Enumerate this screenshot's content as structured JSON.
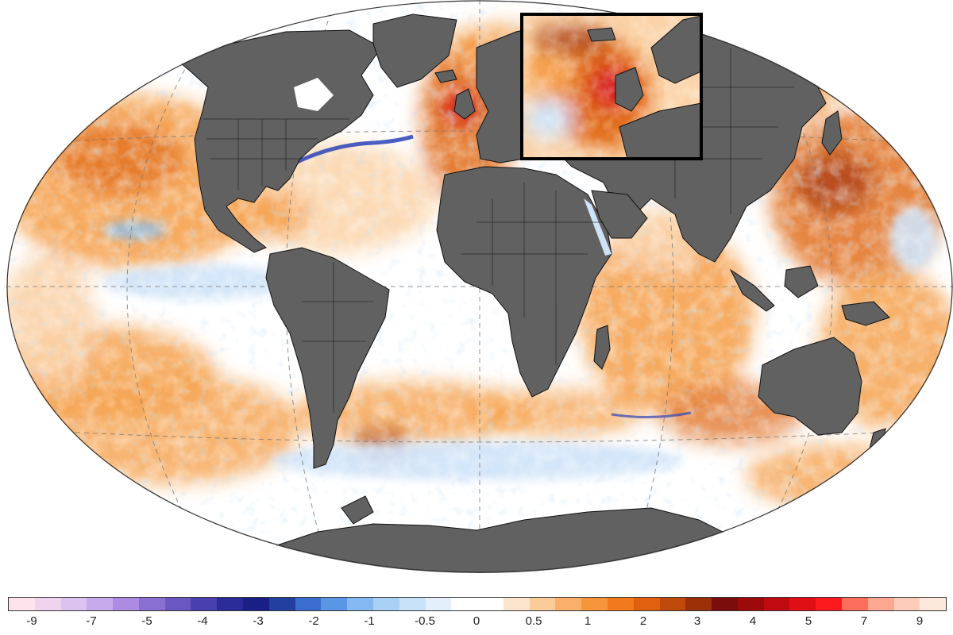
{
  "colors": {
    "land": "#616161",
    "coast": "#111111",
    "ocean_neutral": "#ffffff",
    "warm_light": "#fbd3a8",
    "warm_mid": "#f6a24f",
    "warm_strong": "#e2701f",
    "warm_deep": "#a8380f",
    "hot": "#d8141b",
    "cool_light": "#cfe3f8",
    "cool_mid": "#8cc0ef",
    "cool_deep": "#2c43b8",
    "inset_border": "#000000",
    "graticule": "#777777"
  },
  "colorbar": {
    "colors": [
      "#fde4ec",
      "#f0d3ee",
      "#dcc3ef",
      "#c6a9ea",
      "#ad8be2",
      "#8a6fd3",
      "#6a57c2",
      "#4a3fae",
      "#2a2a99",
      "#1a1f86",
      "#22409f",
      "#3b6dcf",
      "#5b96e4",
      "#83b9f0",
      "#a9d1f6",
      "#c8e2fa",
      "#e3f0fc",
      "#ffffff",
      "#ffffff",
      "#fde4cc",
      "#fccb9a",
      "#fab06a",
      "#f7953d",
      "#f27a1c",
      "#e06010",
      "#c04a0c",
      "#9b3007",
      "#7a0c0c",
      "#9c0a0a",
      "#c00a10",
      "#e00f16",
      "#fc1a1f",
      "#fc6e5c",
      "#fca78f",
      "#fdcdb9",
      "#fde8dc"
    ],
    "labels": [
      "-9",
      "-7",
      "-5",
      "-4",
      "-3",
      "-2",
      "-1",
      "-0.5",
      "0",
      "0.5",
      "1",
      "2",
      "3",
      "4",
      "5",
      "7",
      "9"
    ]
  }
}
